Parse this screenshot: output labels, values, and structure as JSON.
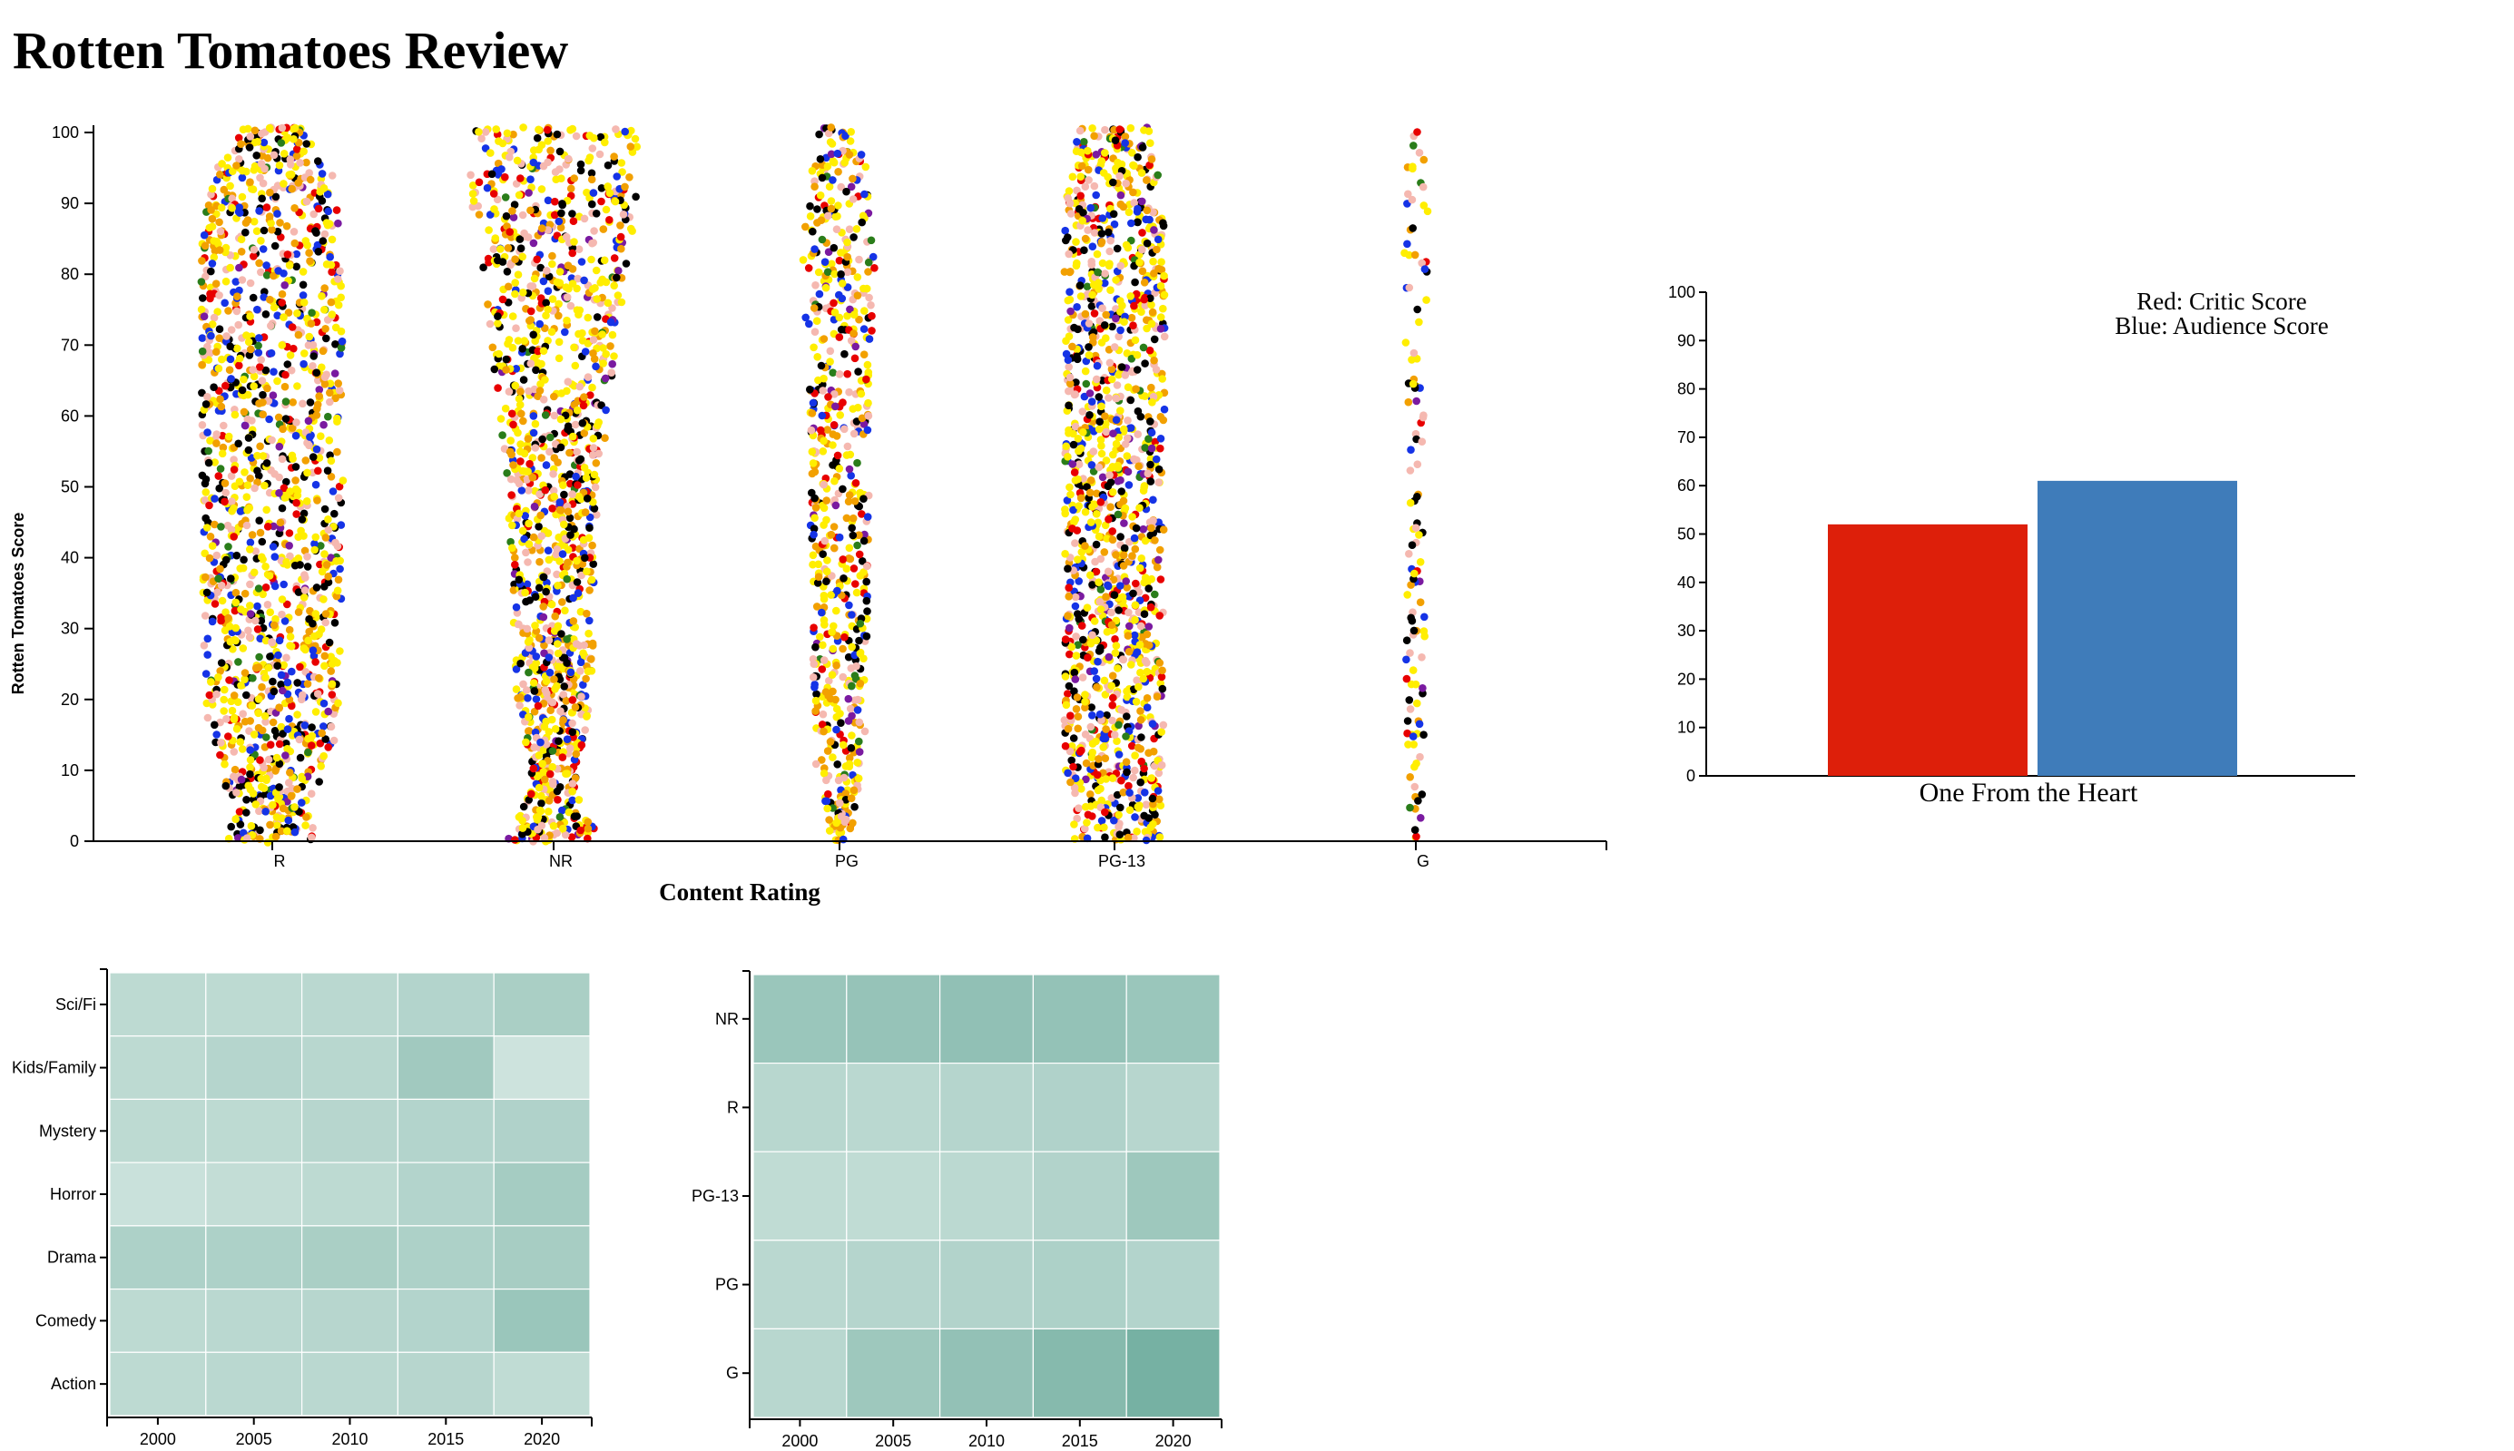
{
  "page": {
    "title": "Rotten Tomatoes Review"
  },
  "chart_data": [
    {
      "type": "scatter",
      "subtype": "beeswarm",
      "xlabel": "Content Rating",
      "ylabel": "Rotten Tomatoes Score",
      "categories": [
        "R",
        "NR",
        "PG",
        "PG-13",
        "G"
      ],
      "yticks": [
        "0",
        "10",
        "20",
        "30",
        "40",
        "50",
        "60",
        "70",
        "80",
        "90",
        "100"
      ],
      "ylim": [
        0,
        100
      ],
      "point_colors": [
        "#ffee00",
        "#f5b8b0",
        "#f2a000",
        "#000000",
        "#1533e6",
        "#e80000",
        "#2a7d1a",
        "#7a1aa0"
      ],
      "density": [
        {
          "category": "R",
          "width_by_score": [
            [
              0,
              0.55
            ],
            [
              5,
              0.45
            ],
            [
              15,
              0.8
            ],
            [
              50,
              0.85
            ],
            [
              85,
              0.85
            ],
            [
              95,
              0.7
            ],
            [
              100,
              0.35
            ]
          ]
        },
        {
          "category": "NR",
          "width_by_score": [
            [
              0,
              0.55
            ],
            [
              8,
              0.25
            ],
            [
              20,
              0.45
            ],
            [
              50,
              0.55
            ],
            [
              75,
              0.8
            ],
            [
              90,
              1.0
            ],
            [
              100,
              1.0
            ]
          ]
        },
        {
          "category": "PG",
          "width_by_score": [
            [
              0,
              0.12
            ],
            [
              10,
              0.3
            ],
            [
              40,
              0.35
            ],
            [
              60,
              0.35
            ],
            [
              85,
              0.45
            ],
            [
              95,
              0.35
            ],
            [
              100,
              0.25
            ]
          ]
        },
        {
          "category": "PG-13",
          "width_by_score": [
            [
              0,
              0.55
            ],
            [
              10,
              0.6
            ],
            [
              50,
              0.6
            ],
            [
              85,
              0.6
            ],
            [
              95,
              0.55
            ],
            [
              100,
              0.45
            ]
          ]
        },
        {
          "category": "G",
          "width_by_score": [
            [
              0,
              0.08
            ],
            [
              20,
              0.12
            ],
            [
              50,
              0.1
            ],
            [
              90,
              0.15
            ],
            [
              100,
              0.1
            ]
          ]
        }
      ]
    },
    {
      "type": "bar",
      "title": "One From the Heart",
      "legend": [
        "Red: Critic Score",
        "Blue: Audience Score"
      ],
      "categories": [
        "Critic Score",
        "Audience Score"
      ],
      "series": [
        {
          "name": "Critic Score",
          "value": 52,
          "color": "#dd1f0a"
        },
        {
          "name": "Audience Score",
          "value": 61,
          "color": "#3f7cba"
        }
      ],
      "yticks": [
        "0",
        "10",
        "20",
        "30",
        "40",
        "50",
        "60",
        "70",
        "80",
        "90",
        "100"
      ],
      "ylim": [
        0,
        100
      ]
    },
    {
      "type": "heatmap",
      "x_labels": [
        "2000",
        "2005",
        "2010",
        "2015",
        "2020"
      ],
      "y_labels": [
        "Sci/Fi",
        "Kids/Family",
        "Mystery",
        "Horror",
        "Drama",
        "Comedy",
        "Action"
      ],
      "values": [
        [
          0.3,
          0.3,
          0.32,
          0.36,
          0.42
        ],
        [
          0.3,
          0.35,
          0.33,
          0.48,
          0.2
        ],
        [
          0.3,
          0.3,
          0.34,
          0.36,
          0.38
        ],
        [
          0.22,
          0.26,
          0.3,
          0.36,
          0.45
        ],
        [
          0.4,
          0.4,
          0.42,
          0.4,
          0.44
        ],
        [
          0.3,
          0.32,
          0.34,
          0.36,
          0.52
        ],
        [
          0.3,
          0.32,
          0.32,
          0.34,
          0.28
        ]
      ],
      "color_range": [
        "#ecf5f2",
        "#4f9a88"
      ]
    },
    {
      "type": "heatmap",
      "x_labels": [
        "2000",
        "2005",
        "2010",
        "2015",
        "2020"
      ],
      "y_labels": [
        "NR",
        "R",
        "PG-13",
        "PG",
        "G"
      ],
      "values": [
        [
          0.52,
          0.55,
          0.58,
          0.56,
          0.52
        ],
        [
          0.33,
          0.32,
          0.35,
          0.38,
          0.34
        ],
        [
          0.28,
          0.28,
          0.31,
          0.37,
          0.5
        ],
        [
          0.32,
          0.35,
          0.37,
          0.4,
          0.36
        ],
        [
          0.33,
          0.5,
          0.57,
          0.65,
          0.75
        ]
      ],
      "color_range": [
        "#ecf5f2",
        "#4f9a88"
      ]
    }
  ]
}
